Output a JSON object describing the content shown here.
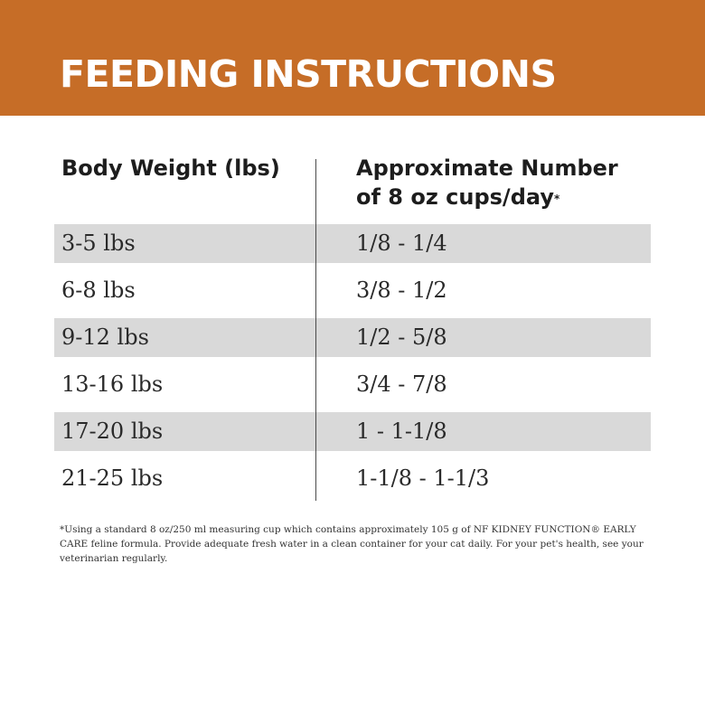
{
  "banner": {
    "title": "FEEDING INSTRUCTIONS"
  },
  "table": {
    "headers": {
      "weight": "Body Weight (lbs)",
      "cups_line1": "Approximate Number",
      "cups_line2": "of 8 oz cups/day",
      "cups_mark": "*"
    },
    "rows": [
      {
        "weight": "3-5 lbs",
        "cups": "1/8 - 1/4",
        "shaded": true
      },
      {
        "weight": "6-8 lbs",
        "cups": "3/8 - 1/2",
        "shaded": false
      },
      {
        "weight": "9-12 lbs",
        "cups": "1/2 - 5/8",
        "shaded": true
      },
      {
        "weight": "13-16 lbs",
        "cups": "3/4 - 7/8",
        "shaded": false
      },
      {
        "weight": "17-20 lbs",
        "cups": "1 - 1-1/8",
        "shaded": true
      },
      {
        "weight": "21-25 lbs",
        "cups": "1-1/8 - 1-1/3",
        "shaded": false
      }
    ]
  },
  "footnote": "*Using a standard 8 oz/250 ml measuring cup which contains approximately 105 g of NF KIDNEY FUNCTION® EARLY CARE feline formula. Provide adequate fresh water in a clean container for your cat daily. For your pet's health, see your veterinarian regularly.",
  "colors": {
    "banner": "#c66d27",
    "row_shade": "#d9d9d9"
  }
}
